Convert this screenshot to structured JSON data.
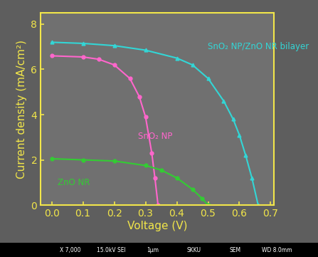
{
  "chart_data": {
    "type": "line",
    "x_label": "Voltage (V)",
    "y_label": "Current density (mA/cm²)",
    "xlim": [
      -0.035,
      0.71
    ],
    "xticks": [
      {
        "value": 0.0,
        "label": "0.0"
      },
      0.1,
      0.2,
      0.3,
      0.4,
      0.5,
      0.6,
      0.7
    ],
    "ylim": [
      0,
      8.5
    ],
    "yticks": [
      0,
      2,
      4,
      6,
      8
    ],
    "grid": false,
    "series": [
      {
        "name": "SnO₂ NP/ZnO NR bilayer",
        "color": "#33d6d6",
        "marker": "triangle",
        "x": [
          0.0,
          0.1,
          0.2,
          0.3,
          0.4,
          0.45,
          0.5,
          0.55,
          0.58,
          0.6,
          0.62,
          0.64,
          0.66
        ],
        "values": [
          7.2,
          7.15,
          7.05,
          6.85,
          6.5,
          6.2,
          5.6,
          4.6,
          3.8,
          3.1,
          2.2,
          1.2,
          0.0
        ]
      },
      {
        "name": "SnO₂ NP",
        "color": "#ff66cc",
        "marker": "circle",
        "x": [
          0.0,
          0.1,
          0.15,
          0.2,
          0.25,
          0.28,
          0.3,
          0.32,
          0.33,
          0.34
        ],
        "values": [
          6.6,
          6.55,
          6.45,
          6.2,
          5.6,
          4.8,
          3.9,
          2.3,
          1.2,
          0.0
        ]
      },
      {
        "name": "ZnO NR",
        "color": "#33cc33",
        "marker": "circle",
        "x": [
          0.0,
          0.1,
          0.2,
          0.3,
          0.35,
          0.4,
          0.45,
          0.48,
          0.5
        ],
        "values": [
          2.05,
          2.0,
          1.95,
          1.75,
          1.55,
          1.2,
          0.7,
          0.3,
          0.0
        ]
      }
    ],
    "footer": [
      "X 7,000",
      "15.0kV SEI",
      "1μm",
      "SKKU",
      "SEM",
      "WD 8.0mm"
    ]
  }
}
